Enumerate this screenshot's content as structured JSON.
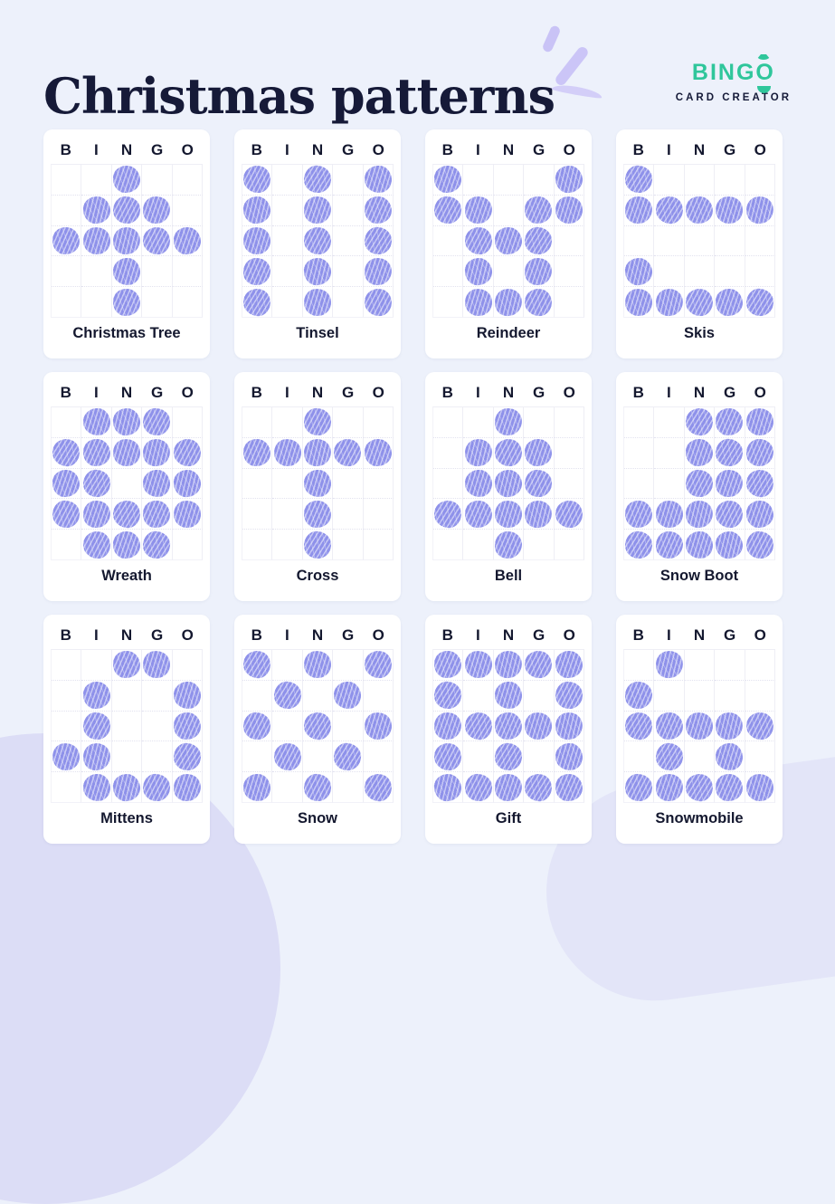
{
  "header": {
    "title": "Christmas patterns"
  },
  "logo": {
    "word_start": "BING",
    "word_o": "O",
    "subtitle": "CARD CREATOR",
    "brand_green": "#2fc69b",
    "brand_navy": "#151a38"
  },
  "bingo_letters": [
    "B",
    "I",
    "N",
    "G",
    "O"
  ],
  "colors": {
    "page_background": "#edf1fb",
    "card_background": "#ffffff",
    "dauber_dot": "#8e91ea",
    "text_navy": "#161a38",
    "grid_line": "#eeeef5",
    "blob_lavender": "#dcddf6",
    "sparkle_lavender": "#cbc5f7"
  },
  "cards": [
    {
      "label": "Christmas Tree",
      "pattern": [
        "00100",
        "01110",
        "11111",
        "00100",
        "00100"
      ]
    },
    {
      "label": "Tinsel",
      "pattern": [
        "10101",
        "10101",
        "10101",
        "10101",
        "10101"
      ]
    },
    {
      "label": "Reindeer",
      "pattern": [
        "10001",
        "11011",
        "01110",
        "01010",
        "01110"
      ]
    },
    {
      "label": "Skis",
      "pattern": [
        "10000",
        "11111",
        "00000",
        "10000",
        "11111"
      ]
    },
    {
      "label": "Wreath",
      "pattern": [
        "01110",
        "11111",
        "11011",
        "11111",
        "01110"
      ]
    },
    {
      "label": "Cross",
      "pattern": [
        "00100",
        "11111",
        "00100",
        "00100",
        "00100"
      ]
    },
    {
      "label": "Bell",
      "pattern": [
        "00100",
        "01110",
        "01110",
        "11111",
        "00100"
      ]
    },
    {
      "label": "Snow Boot",
      "pattern": [
        "00111",
        "00111",
        "00111",
        "11111",
        "11111"
      ]
    },
    {
      "label": "Mittens",
      "pattern": [
        "00110",
        "01001",
        "01001",
        "11001",
        "01111"
      ]
    },
    {
      "label": "Snow",
      "pattern": [
        "10101",
        "01010",
        "10101",
        "01010",
        "10101"
      ]
    },
    {
      "label": "Gift",
      "pattern": [
        "11111",
        "10101",
        "11111",
        "10101",
        "11111"
      ]
    },
    {
      "label": "Snowmobile",
      "pattern": [
        "01000",
        "10000",
        "11111",
        "01010",
        "11111"
      ]
    }
  ]
}
